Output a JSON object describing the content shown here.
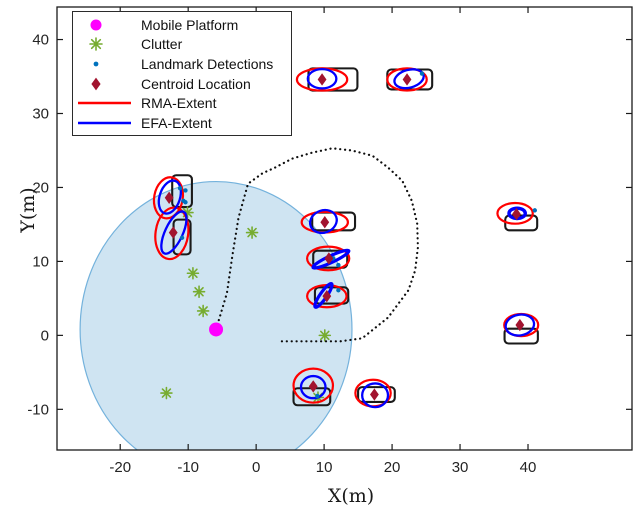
{
  "figure": {
    "xlabel": "X(m)",
    "ylabel": "Y(m)"
  },
  "legend": {
    "items": [
      {
        "label": "Mobile Platform",
        "marker": "circle",
        "color": "#FF00FF"
      },
      {
        "label": "Clutter",
        "marker": "asterisk",
        "color": "#77AC30"
      },
      {
        "label": "Landmark Detections",
        "marker": "dot",
        "color": "#0072BD"
      },
      {
        "label": "Centroid Location",
        "marker": "diamond",
        "color": "#A2142F"
      },
      {
        "label": "RMA-Extent",
        "marker": "line",
        "color": "#FF0000"
      },
      {
        "label": "EFA-Extent",
        "marker": "line",
        "color": "#0000FF"
      }
    ]
  },
  "chart_data": {
    "type": "scatter",
    "title": "",
    "xlabel": "X(m)",
    "ylabel": "Y(m)",
    "xlim": [
      -29.3,
      55.3
    ],
    "ylim": [
      -15.5,
      44.4
    ],
    "xticks": [
      -20,
      -10,
      0,
      10,
      20,
      30,
      40
    ],
    "yticks": [
      -10,
      0,
      10,
      20,
      30,
      40
    ],
    "grid": false,
    "legend_position": "top-left",
    "colors": {
      "platform": "#FF00FF",
      "clutter": "#77AC30",
      "detections": "#0072BD",
      "centroid": "#A2142F",
      "rma": "#FF0000",
      "efa": "#0000FF",
      "fov_fill": "#CFE4F2",
      "fov_edge": "#74B2DC",
      "rect_edge": "#1a1a1a",
      "trajectory": "#0d0d0d",
      "axes": "#1a1a1a"
    },
    "platform": {
      "x": -5.9,
      "y": 0.8,
      "fov_radius": 20
    },
    "trajectory": [
      [
        -5.9,
        0.8
      ],
      [
        -4.3,
        5.7
      ],
      [
        -3.5,
        10.8
      ],
      [
        -2.6,
        15.9
      ],
      [
        -1.2,
        20.5
      ],
      [
        0.9,
        21.9
      ],
      [
        2.8,
        22.7
      ],
      [
        5.3,
        23.9
      ],
      [
        8.2,
        24.7
      ],
      [
        11.2,
        25.3
      ],
      [
        14.1,
        25.0
      ],
      [
        17.1,
        24.3
      ],
      [
        19.4,
        22.7
      ],
      [
        21.5,
        20.9
      ],
      [
        22.9,
        18.2
      ],
      [
        23.7,
        15.1
      ],
      [
        23.8,
        11.9
      ],
      [
        23.4,
        8.8
      ],
      [
        22.4,
        6.1
      ],
      [
        19.4,
        2.4
      ],
      [
        15.6,
        -0.4
      ],
      [
        12.4,
        -0.8
      ],
      [
        6.5,
        -0.8
      ],
      [
        3.2,
        -0.8
      ]
    ],
    "clutter": [
      [
        -10.1,
        16.6
      ],
      [
        -0.6,
        13.9
      ],
      [
        -9.3,
        8.4
      ],
      [
        -8.4,
        5.9
      ],
      [
        -7.8,
        3.3
      ],
      [
        -13.2,
        -7.8
      ],
      [
        10.1,
        0.0
      ],
      [
        9.1,
        -8.4
      ]
    ],
    "landmarks": [
      {
        "name": "left-upper",
        "rect": {
          "cx": -10.9,
          "cy": 19.5,
          "w": 2.9,
          "h": 4.3
        },
        "rma": {
          "cx": -12.9,
          "cy": 18.6,
          "rx": 2.1,
          "ry": 2.8,
          "angle": 10
        },
        "efa": {
          "cx": -12.7,
          "cy": 18.7,
          "rx": 1.5,
          "ry": 2.3,
          "angle": 18
        },
        "centroid": {
          "x": -12.8,
          "y": 18.6
        },
        "detections": [
          [
            -11.2,
            19.9
          ],
          [
            -10.4,
            19.6
          ],
          [
            -10.7,
            18.2
          ],
          [
            -10.4,
            18.0
          ]
        ]
      },
      {
        "name": "left-lower",
        "rect": {
          "cx": -10.9,
          "cy": 13.3,
          "w": 2.5,
          "h": 4.7
        },
        "rma": {
          "cx": -12.4,
          "cy": 13.8,
          "rx": 2.4,
          "ry": 3.5,
          "angle": 8
        },
        "efa": {
          "cx": -12.1,
          "cy": 13.9,
          "rx": 1.3,
          "ry": 3.1,
          "angle": 25
        },
        "centroid": {
          "x": -12.2,
          "y": 13.9
        },
        "detections": [
          [
            -10.9,
            13.2
          ]
        ]
      },
      {
        "name": "top-left",
        "rect": {
          "cx": 11.3,
          "cy": 34.6,
          "w": 7.2,
          "h": 3.0
        },
        "rma": {
          "cx": 9.7,
          "cy": 34.6,
          "rx": 3.7,
          "ry": 1.5,
          "angle": 0
        },
        "efa": {
          "cx": 9.7,
          "cy": 34.7,
          "rx": 2.1,
          "ry": 1.3,
          "angle": 0
        },
        "centroid": {
          "x": 9.7,
          "y": 34.6
        },
        "detections": []
      },
      {
        "name": "top-right",
        "rect": {
          "cx": 22.6,
          "cy": 34.6,
          "w": 6.6,
          "h": 2.7
        },
        "rma": {
          "cx": 22.2,
          "cy": 34.6,
          "rx": 2.9,
          "ry": 1.5,
          "angle": 0
        },
        "efa": {
          "cx": 22.5,
          "cy": 34.7,
          "rx": 2.2,
          "ry": 1.2,
          "angle": -15
        },
        "centroid": {
          "x": 22.2,
          "y": 34.6
        },
        "detections": [
          [
            24.4,
            35.4
          ]
        ]
      },
      {
        "name": "mid-upper",
        "rect": {
          "cx": 11.4,
          "cy": 15.4,
          "w": 6.3,
          "h": 2.4
        },
        "rma": {
          "cx": 10.1,
          "cy": 15.3,
          "rx": 3.4,
          "ry": 1.4,
          "angle": 0
        },
        "efa": {
          "cx": 9.9,
          "cy": 15.4,
          "rx": 2.0,
          "ry": 1.5,
          "angle": -20
        },
        "centroid": {
          "x": 10.1,
          "y": 15.3
        },
        "detections": []
      },
      {
        "name": "mid-middle",
        "rect": {
          "cx": 10.9,
          "cy": 10.3,
          "w": 5.0,
          "h": 2.3
        },
        "rma": {
          "cx": 10.6,
          "cy": 10.4,
          "rx": 3.1,
          "ry": 1.6,
          "angle": 0
        },
        "efa": {
          "cx": 11.0,
          "cy": 10.3,
          "rx": 2.9,
          "ry": 0.45,
          "angle": -25,
          "sw": 3.2
        },
        "centroid": {
          "x": 10.7,
          "y": 10.4
        },
        "detections": [
          [
            11.3,
            10.4
          ],
          [
            12.1,
            9.5
          ]
        ]
      },
      {
        "name": "mid-lower",
        "rect": {
          "cx": 11.1,
          "cy": 5.4,
          "w": 4.9,
          "h": 2.2
        },
        "rma": {
          "cx": 10.4,
          "cy": 5.3,
          "rx": 2.9,
          "ry": 1.5,
          "angle": 0
        },
        "efa": {
          "cx": 9.9,
          "cy": 5.4,
          "rx": 2.1,
          "ry": 0.45,
          "angle": -55,
          "sw": 3.2
        },
        "centroid": {
          "x": 10.4,
          "y": 5.3
        },
        "detections": [
          [
            12.1,
            6.1
          ]
        ]
      },
      {
        "name": "bottom-left",
        "rect": {
          "cx": 8.2,
          "cy": -8.3,
          "w": 5.4,
          "h": 2.3
        },
        "rma": {
          "cx": 8.4,
          "cy": -6.8,
          "rx": 2.9,
          "ry": 2.3,
          "angle": 0
        },
        "efa": {
          "cx": 8.4,
          "cy": -7.0,
          "rx": 1.8,
          "ry": 1.5,
          "angle": 0
        },
        "centroid": {
          "x": 8.4,
          "y": -6.9
        },
        "detections": [
          [
            9.0,
            -8.2
          ]
        ]
      },
      {
        "name": "bottom-right",
        "rect": {
          "cx": 17.7,
          "cy": -8.0,
          "w": 5.4,
          "h": 2.0
        },
        "rma": {
          "cx": 17.2,
          "cy": -7.8,
          "rx": 2.6,
          "ry": 1.8,
          "angle": 0
        },
        "efa": {
          "cx": 17.5,
          "cy": -8.1,
          "rx": 1.9,
          "ry": 1.6,
          "angle": 0
        },
        "centroid": {
          "x": 17.4,
          "y": -8.0
        },
        "detections": []
      },
      {
        "name": "right-upper",
        "rect": {
          "cx": 39.0,
          "cy": 15.2,
          "w": 4.7,
          "h": 2.0
        },
        "rma": {
          "cx": 38.1,
          "cy": 16.5,
          "rx": 2.6,
          "ry": 1.4,
          "angle": 0
        },
        "efa": {
          "cx": 38.4,
          "cy": 16.5,
          "rx": 1.2,
          "ry": 0.7,
          "angle": 0,
          "sw": 3.4
        },
        "centroid": {
          "x": 38.3,
          "y": 16.4
        },
        "detections": [
          [
            41.0,
            16.9
          ]
        ]
      },
      {
        "name": "right-lower",
        "rect": {
          "cx": 39.0,
          "cy": -0.1,
          "w": 4.9,
          "h": 2.0
        },
        "rma": {
          "cx": 39.0,
          "cy": 1.4,
          "rx": 2.5,
          "ry": 1.5,
          "angle": 0
        },
        "efa": {
          "cx": 38.8,
          "cy": 1.4,
          "rx": 2.1,
          "ry": 1.4,
          "angle": -10
        },
        "centroid": {
          "x": 38.8,
          "y": 1.4
        },
        "detections": []
      }
    ]
  }
}
